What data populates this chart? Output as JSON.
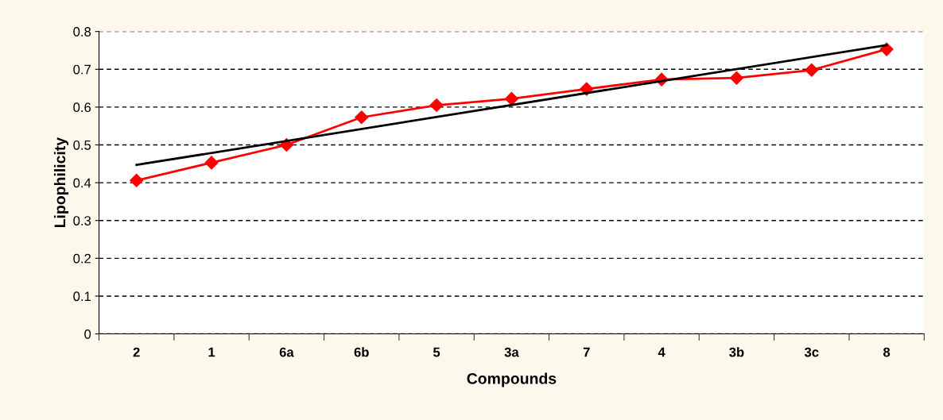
{
  "chart_data": {
    "type": "line",
    "xlabel": "Compounds",
    "ylabel": "Lipophilicity",
    "categories": [
      "2",
      "1",
      "6a",
      "6b",
      "5",
      "3a",
      "7",
      "4",
      "3b",
      "3c",
      "8"
    ],
    "series": [
      {
        "color": "#ff0000",
        "marker": "diamond",
        "values": [
          0.406,
          0.453,
          0.5,
          0.573,
          0.605,
          0.622,
          0.648,
          0.673,
          0.677,
          0.698,
          0.753
        ]
      },
      {
        "color": "#000000",
        "marker": "none",
        "x": [
          "2",
          "8"
        ],
        "values": [
          0.447,
          0.764
        ]
      }
    ],
    "ylim": [
      0,
      0.8
    ],
    "yticks": [
      0,
      0.1,
      0.2,
      0.3,
      0.4,
      0.5,
      0.6,
      0.7,
      0.8
    ],
    "grid": "y",
    "legend": false
  }
}
